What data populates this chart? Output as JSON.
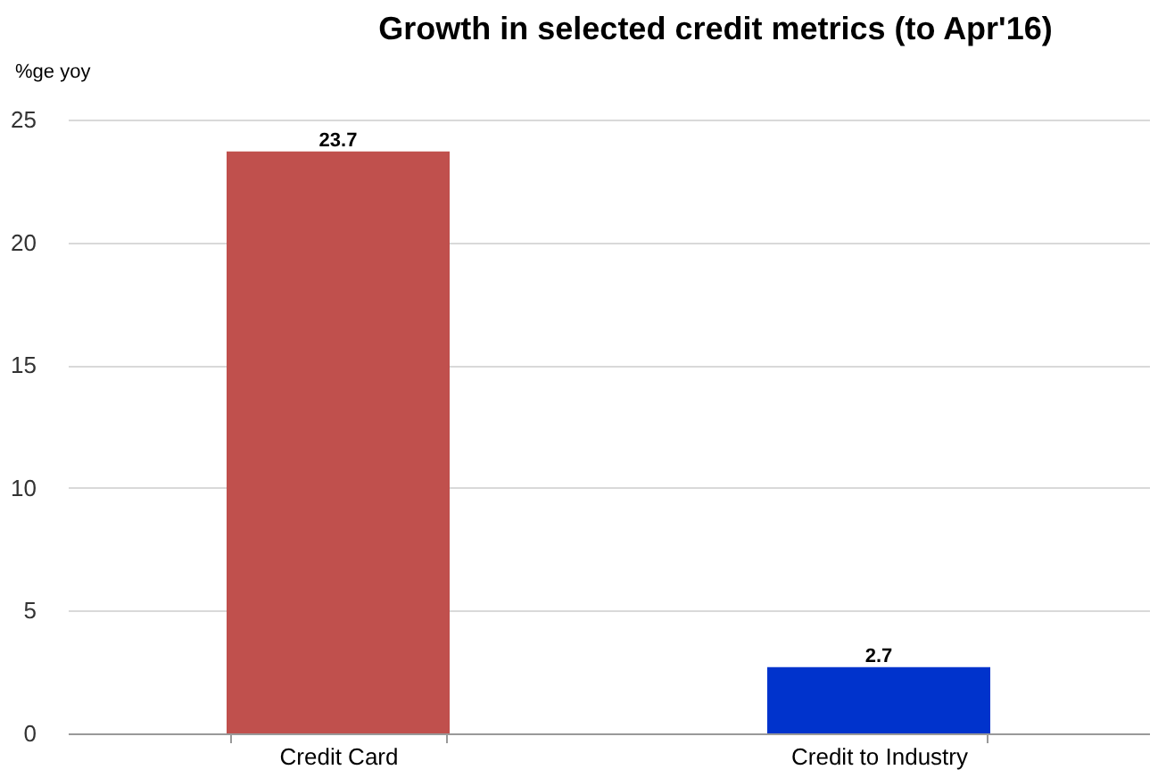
{
  "chart_data": {
    "type": "bar",
    "title": "Growth in selected credit metrics (to Apr'16)",
    "ylabel": "%ge yoy",
    "categories": [
      "Credit Card",
      "Credit to Industry"
    ],
    "values": [
      23.7,
      2.7
    ],
    "colors": [
      "#c0504d",
      "#0033cc"
    ],
    "ylim": [
      0,
      25
    ],
    "yticks": [
      0,
      5,
      10,
      15,
      20,
      25
    ],
    "grid": "y",
    "data_labels": true
  }
}
